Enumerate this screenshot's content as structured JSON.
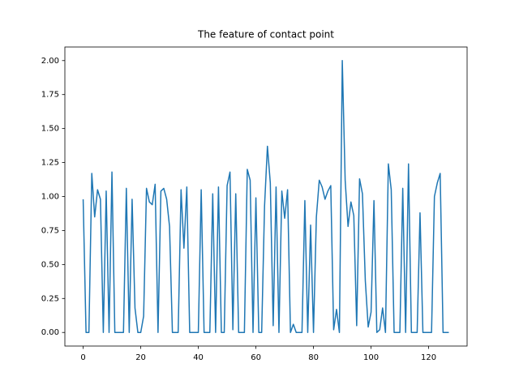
{
  "chart_data": {
    "type": "line",
    "title": "The feature of contact point",
    "x": [
      0,
      1,
      2,
      3,
      4,
      5,
      6,
      7,
      8,
      9,
      10,
      11,
      12,
      13,
      14,
      15,
      16,
      17,
      18,
      19,
      20,
      21,
      22,
      23,
      24,
      25,
      26,
      27,
      28,
      29,
      30,
      31,
      32,
      33,
      34,
      35,
      36,
      37,
      38,
      39,
      40,
      41,
      42,
      43,
      44,
      45,
      46,
      47,
      48,
      49,
      50,
      51,
      52,
      53,
      54,
      55,
      56,
      57,
      58,
      59,
      60,
      61,
      62,
      63,
      64,
      65,
      66,
      67,
      68,
      69,
      70,
      71,
      72,
      73,
      74,
      75,
      76,
      77,
      78,
      79,
      80,
      81,
      82,
      83,
      84,
      85,
      86,
      87,
      88,
      89,
      90,
      91,
      92,
      93,
      94,
      95,
      96,
      97,
      98,
      99,
      100,
      101,
      102,
      103,
      104,
      105,
      106,
      107,
      108,
      109,
      110,
      111,
      112,
      113,
      114,
      115,
      116,
      117,
      118,
      119,
      120,
      121,
      122,
      123,
      124,
      125,
      126,
      127
    ],
    "series": [
      {
        "color": "#1f77b4",
        "values": [
          0.98,
          0,
          0,
          1.17,
          0.85,
          1.05,
          0.98,
          0,
          1.04,
          0,
          1.18,
          0,
          0,
          0,
          0,
          1.06,
          0,
          0.98,
          0.18,
          0,
          0,
          0.12,
          1.06,
          0.96,
          0.94,
          1.09,
          0,
          1.04,
          1.06,
          0.98,
          0.78,
          0,
          0,
          0,
          1.05,
          0.62,
          1.07,
          0,
          0,
          0,
          0,
          1.05,
          0,
          0,
          0,
          1.02,
          0,
          1.07,
          0,
          0,
          1.08,
          1.18,
          0.02,
          1.02,
          0,
          0,
          0,
          1.2,
          1.12,
          0,
          0.99,
          0,
          0,
          0.93,
          1.37,
          1.1,
          0.05,
          1.07,
          0,
          1.04,
          0.84,
          1.05,
          0,
          0.06,
          0,
          0,
          0,
          0.97,
          0,
          0.79,
          0,
          0.85,
          1.12,
          1.07,
          0.98,
          1.04,
          1.08,
          0.02,
          0.17,
          0,
          2.0,
          1.12,
          0.78,
          0.96,
          0.86,
          0.05,
          1.13,
          1.02,
          0.38,
          0.04,
          0.15,
          0.97,
          0,
          0.02,
          0.18,
          0,
          1.24,
          1.05,
          0,
          0,
          0,
          1.06,
          0,
          1.24,
          0,
          0,
          0,
          0.88,
          0,
          0,
          0,
          0,
          1.0,
          1.1,
          1.17,
          0,
          0,
          0
        ]
      }
    ],
    "xlim": [
      -6.35,
      133.35
    ],
    "ylim": [
      -0.1,
      2.1
    ],
    "xticks": [
      0,
      20,
      40,
      60,
      80,
      100,
      120
    ],
    "yticks": [
      {
        "value": 0,
        "label": "0.00"
      },
      {
        "value": 0.25,
        "label": "0.25"
      },
      {
        "value": 0.5,
        "label": "0.50"
      },
      {
        "value": 0.75,
        "label": "0.75"
      },
      {
        "value": 1,
        "label": "1.00"
      },
      {
        "value": 1.25,
        "label": "1.25"
      },
      {
        "value": 1.5,
        "label": "1.50"
      },
      {
        "value": 1.75,
        "label": "1.75"
      },
      {
        "value": 2,
        "label": "2.00"
      }
    ],
    "grid": false
  }
}
